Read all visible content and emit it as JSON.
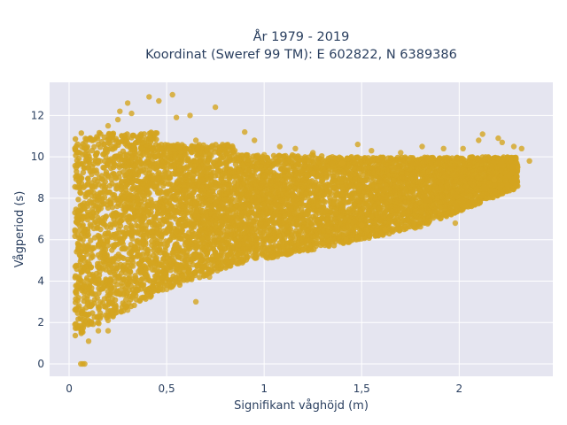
{
  "chart_data": {
    "type": "scatter",
    "title": [
      "År 1979 - 2019",
      "Koordinat (Sweref 99 TM): E 602822, N 6389386"
    ],
    "xlabel": "Signifikant våghöjd (m)",
    "ylabel": "Vågperiod (s)",
    "xlim": [
      -0.1,
      2.48
    ],
    "ylim": [
      -0.6,
      13.6
    ],
    "x_ticks": [
      0,
      0.5,
      1,
      1.5,
      2
    ],
    "x_tick_labels": [
      "0",
      "0,5",
      "1",
      "1,5",
      "2"
    ],
    "y_ticks": [
      0,
      2,
      4,
      6,
      8,
      10,
      12
    ],
    "y_tick_labels": [
      "0",
      "2",
      "4",
      "6",
      "8",
      "10",
      "12"
    ],
    "grid": true,
    "marker_color": "#D4A520",
    "plot_background": "#E5E5F0",
    "points": [
      {
        "x": 0.06,
        "y": 0.0
      },
      {
        "x": 0.08,
        "y": 0.0
      },
      {
        "x": 0.07,
        "y": 0.0
      },
      {
        "x": 0.26,
        "y": 12.2
      },
      {
        "x": 0.32,
        "y": 12.1
      },
      {
        "x": 0.41,
        "y": 12.9
      },
      {
        "x": 0.53,
        "y": 13.0
      },
      {
        "x": 0.46,
        "y": 12.7
      },
      {
        "x": 0.25,
        "y": 11.8
      },
      {
        "x": 0.3,
        "y": 12.6
      },
      {
        "x": 0.75,
        "y": 12.4
      },
      {
        "x": 0.55,
        "y": 11.9
      },
      {
        "x": 0.62,
        "y": 12.0
      },
      {
        "x": 0.2,
        "y": 11.5
      },
      {
        "x": 0.85,
        "y": 10.3
      },
      {
        "x": 0.9,
        "y": 11.2
      },
      {
        "x": 0.95,
        "y": 10.8
      },
      {
        "x": 1.0,
        "y": 10.1
      },
      {
        "x": 1.08,
        "y": 10.5
      },
      {
        "x": 1.16,
        "y": 10.4
      },
      {
        "x": 1.25,
        "y": 10.2
      },
      {
        "x": 1.35,
        "y": 10.0
      },
      {
        "x": 1.48,
        "y": 10.6
      },
      {
        "x": 1.55,
        "y": 10.3
      },
      {
        "x": 1.7,
        "y": 10.2
      },
      {
        "x": 1.81,
        "y": 10.5
      },
      {
        "x": 1.92,
        "y": 10.4
      },
      {
        "x": 2.02,
        "y": 10.4
      },
      {
        "x": 2.1,
        "y": 10.8
      },
      {
        "x": 2.12,
        "y": 11.1
      },
      {
        "x": 2.2,
        "y": 10.9
      },
      {
        "x": 2.22,
        "y": 10.7
      },
      {
        "x": 2.28,
        "y": 10.5
      },
      {
        "x": 2.32,
        "y": 10.4
      },
      {
        "x": 2.36,
        "y": 9.8
      },
      {
        "x": 2.3,
        "y": 9.5
      },
      {
        "x": 2.18,
        "y": 8.9
      },
      {
        "x": 1.98,
        "y": 6.8
      },
      {
        "x": 1.9,
        "y": 7.3
      },
      {
        "x": 1.72,
        "y": 6.6
      },
      {
        "x": 1.62,
        "y": 6.5
      },
      {
        "x": 1.5,
        "y": 6.7
      },
      {
        "x": 1.42,
        "y": 6.0
      },
      {
        "x": 1.3,
        "y": 5.8
      },
      {
        "x": 1.2,
        "y": 5.5
      },
      {
        "x": 0.72,
        "y": 4.2
      },
      {
        "x": 0.65,
        "y": 3.0
      },
      {
        "x": 0.5,
        "y": 3.6
      },
      {
        "x": 0.4,
        "y": 3.3
      },
      {
        "x": 0.3,
        "y": 2.6
      },
      {
        "x": 0.2,
        "y": 2.1
      },
      {
        "x": 0.15,
        "y": 1.6
      },
      {
        "x": 0.1,
        "y": 1.1
      },
      {
        "x": 0.2,
        "y": 1.6
      },
      {
        "x": 0.03,
        "y": 1.9
      },
      {
        "x": 0.04,
        "y": 3.8
      },
      {
        "x": 0.05,
        "y": 5.6
      },
      {
        "x": 0.07,
        "y": 7.0
      },
      {
        "x": 0.12,
        "y": 8.5
      },
      {
        "x": 0.16,
        "y": 9.8
      },
      {
        "x": 0.18,
        "y": 10.6
      },
      {
        "x": 0.22,
        "y": 11.1
      },
      {
        "x": 1.4,
        "y": 9.7
      },
      {
        "x": 1.25,
        "y": 9.2
      },
      {
        "x": 0.65,
        "y": 10.8
      }
    ],
    "density_bands": [
      {
        "x_range": [
          0.03,
          0.45
        ],
        "y_min_at_start": 1.3,
        "y_min_at_end": 3.4,
        "y_max": 11.2
      },
      {
        "x_range": [
          0.45,
          0.85
        ],
        "y_min_at_start": 3.4,
        "y_min_at_end": 4.8,
        "y_max": 10.6
      },
      {
        "x_range": [
          0.85,
          1.3
        ],
        "y_min_at_start": 4.8,
        "y_min_at_end": 5.6,
        "y_max": 10.1
      },
      {
        "x_range": [
          1.3,
          1.8
        ],
        "y_min_at_start": 5.6,
        "y_min_at_end": 6.6,
        "y_max": 10.0
      },
      {
        "x_range": [
          1.8,
          2.3
        ],
        "y_min_at_start": 6.6,
        "y_min_at_end": 8.5,
        "y_max": 10.0
      }
    ]
  }
}
